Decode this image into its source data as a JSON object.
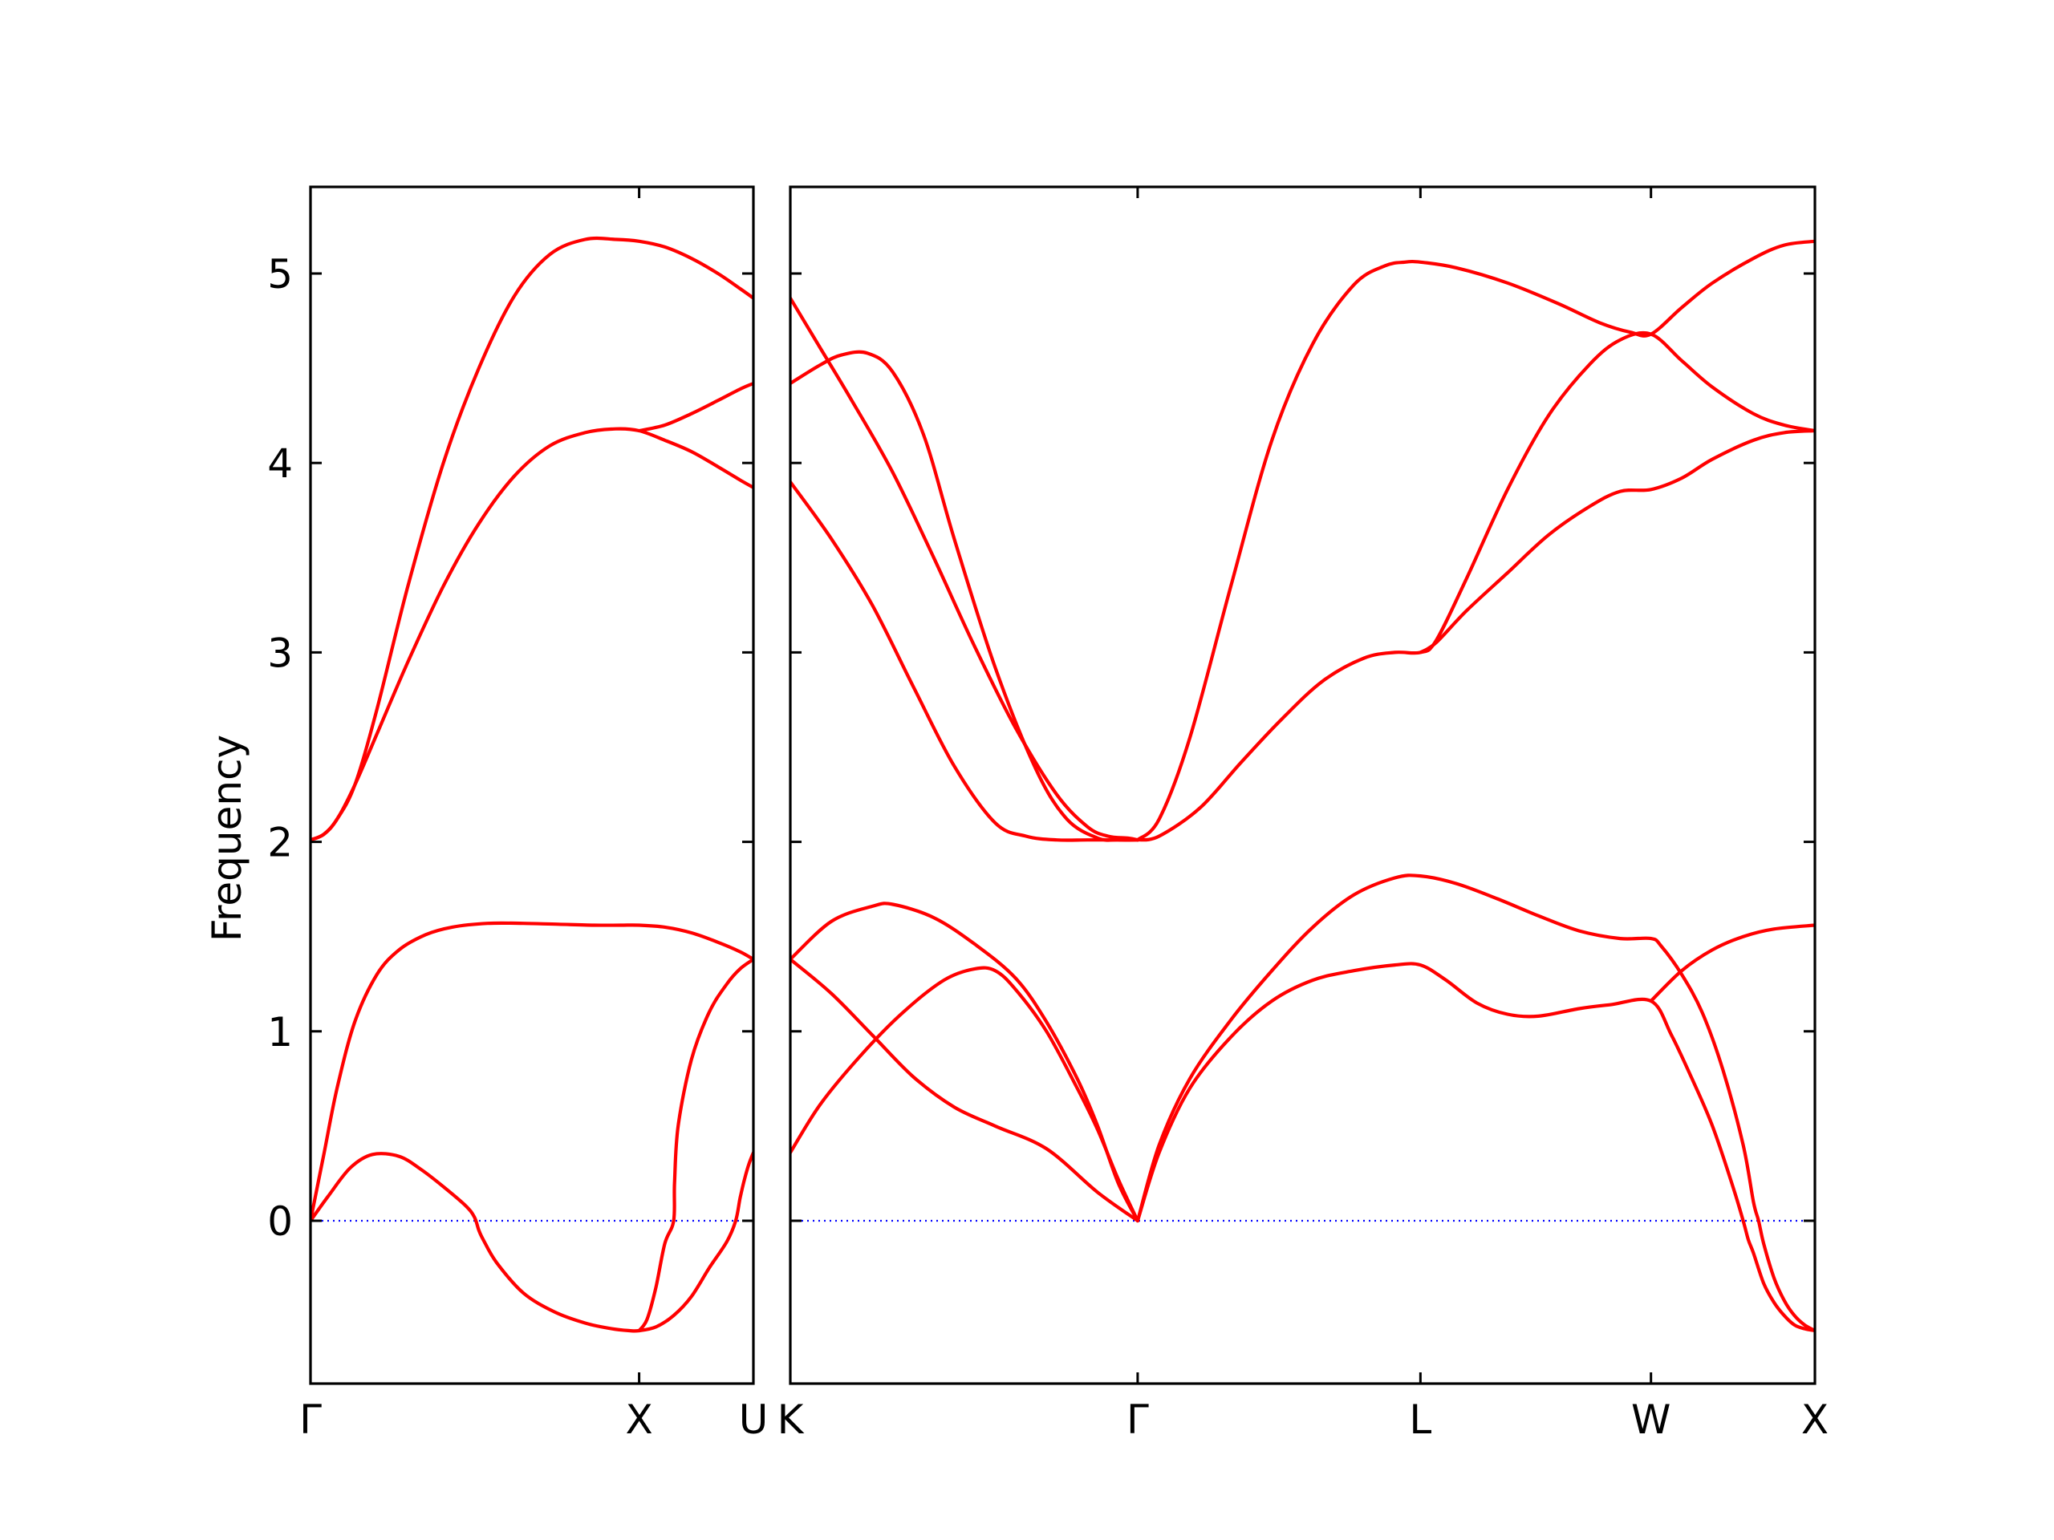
{
  "chart_data": {
    "type": "line",
    "ylabel": "Frequency",
    "ylim": [
      -0.87,
      5.47
    ],
    "yticks": [
      0,
      1,
      2,
      3,
      4,
      5
    ],
    "grid": false,
    "zero_line_color": "#0000ff",
    "band_color": "#ff0000",
    "panels": [
      {
        "xlim": [
          0,
          1
        ],
        "ticks": [
          {
            "x": 0,
            "label": "Γ"
          },
          {
            "x": 0.742,
            "label": "X"
          },
          {
            "x": 1,
            "label": "U"
          }
        ],
        "series": [
          {
            "x": [
              0,
              0.03,
              0.06,
              0.1,
              0.15,
              0.22,
              0.3,
              0.38,
              0.46,
              0.54,
              0.62,
              0.69,
              0.742,
              0.8,
              0.86,
              0.92,
              0.97,
              1.0
            ],
            "values": [
              2.01,
              2.04,
              2.12,
              2.3,
              2.7,
              3.35,
              4.0,
              4.5,
              4.88,
              5.1,
              5.18,
              5.18,
              5.17,
              5.14,
              5.08,
              5.0,
              4.92,
              4.87
            ]
          },
          {
            "x": [
              0,
              0.03,
              0.06,
              0.1,
              0.15,
              0.22,
              0.3,
              0.38,
              0.46,
              0.54,
              0.62,
              0.69,
              0.742,
              0.8,
              0.86,
              0.92,
              0.97,
              1.0
            ],
            "values": [
              2.01,
              2.04,
              2.12,
              2.3,
              2.57,
              2.95,
              3.35,
              3.68,
              3.93,
              4.09,
              4.16,
              4.18,
              4.17,
              4.12,
              4.06,
              3.98,
              3.91,
              3.87
            ]
          },
          {
            "x": [
              0.742,
              0.8,
              0.86,
              0.92,
              0.97,
              1.0
            ],
            "values": [
              4.17,
              4.2,
              4.26,
              4.33,
              4.39,
              4.42
            ]
          },
          {
            "x": [
              0,
              0.03,
              0.06,
              0.1,
              0.15,
              0.2,
              0.26,
              0.32,
              0.4,
              0.48,
              0.56,
              0.64,
              0.7,
              0.742,
              0.8,
              0.86,
              0.92,
              0.97,
              1.0
            ],
            "values": [
              0,
              0.35,
              0.7,
              1.05,
              1.3,
              1.43,
              1.51,
              1.55,
              1.57,
              1.57,
              1.565,
              1.56,
              1.56,
              1.56,
              1.55,
              1.52,
              1.47,
              1.42,
              1.38
            ]
          },
          {
            "x": [
              0,
              0.04,
              0.09,
              0.14,
              0.2,
              0.25,
              0.3,
              0.35,
              0.37,
              0.38,
              0.39,
              0.42,
              0.48,
              0.55,
              0.62,
              0.68,
              0.72,
              0.742,
              0.78,
              0.82,
              0.86,
              0.9,
              0.94,
              0.96,
              0.97,
              0.98,
              0.99,
              1.0
            ],
            "values": [
              0,
              0.13,
              0.28,
              0.35,
              0.34,
              0.27,
              0.18,
              0.08,
              0.02,
              -0.05,
              -0.1,
              -0.22,
              -0.38,
              -0.48,
              -0.54,
              -0.57,
              -0.58,
              -0.58,
              -0.56,
              -0.5,
              -0.4,
              -0.25,
              -0.11,
              0,
              0.12,
              0.22,
              0.3,
              0.36
            ]
          },
          {
            "x": [
              0.742,
              0.76,
              0.78,
              0.8,
              0.82,
              0.822,
              0.83,
              0.86,
              0.9,
              0.94,
              0.97,
              1.0
            ],
            "values": [
              -0.58,
              -0.52,
              -0.35,
              -0.12,
              0,
              0.2,
              0.5,
              0.85,
              1.1,
              1.25,
              1.33,
              1.38
            ]
          }
        ]
      },
      {
        "xlim": [
          0,
          1
        ],
        "ticks": [
          {
            "x": 0,
            "label": "K"
          },
          {
            "x": 0.339,
            "label": "Γ"
          },
          {
            "x": 0.615,
            "label": "L"
          },
          {
            "x": 0.84,
            "label": "W"
          },
          {
            "x": 1,
            "label": "X"
          }
        ],
        "series": [
          {
            "x": [
              0,
              0.03,
              0.06,
              0.1,
              0.14,
              0.18,
              0.22,
              0.26,
              0.29,
              0.31,
              0.33,
              0.339
            ],
            "values": [
              4.87,
              4.6,
              4.33,
              3.95,
              3.5,
              3.03,
              2.6,
              2.25,
              2.08,
              2.03,
              2.02,
              2.01
            ]
          },
          {
            "x": [
              0,
              0.03,
              0.05,
              0.075,
              0.1,
              0.13,
              0.16,
              0.2,
              0.24,
              0.27,
              0.3,
              0.32,
              0.339
            ],
            "values": [
              4.42,
              4.52,
              4.57,
              4.58,
              4.48,
              4.15,
              3.6,
              2.92,
              2.38,
              2.12,
              2.02,
              2.01,
              2.01
            ]
          },
          {
            "x": [
              0,
              0.04,
              0.08,
              0.12,
              0.16,
              0.2,
              0.23,
              0.26,
              0.29,
              0.32,
              0.339
            ],
            "values": [
              3.9,
              3.6,
              3.25,
              2.82,
              2.4,
              2.1,
              2.03,
              2.01,
              2.01,
              2.01,
              2.01
            ]
          },
          {
            "x": [
              0.339,
              0.36,
              0.39,
              0.43,
              0.47,
              0.51,
              0.55,
              0.58,
              0.6,
              0.615,
              0.65,
              0.7,
              0.75,
              0.79,
              0.82,
              0.84,
              0.87,
              0.9,
              0.94,
              0.97,
              1.0
            ],
            "values": [
              2.01,
              2.12,
              2.55,
              3.35,
              4.12,
              4.63,
              4.94,
              5.04,
              5.06,
              5.06,
              5.03,
              4.95,
              4.84,
              4.74,
              4.69,
              4.68,
              4.82,
              4.95,
              5.08,
              5.15,
              5.17
            ]
          },
          {
            "x": [
              0.339,
              0.36,
              0.4,
              0.44,
              0.48,
              0.52,
              0.56,
              0.59,
              0.615,
              0.63,
              0.66,
              0.7,
              0.74,
              0.78,
              0.81,
              0.84,
              0.87,
              0.9,
              0.94,
              0.97,
              1.0
            ],
            "values": [
              2.01,
              2.03,
              2.18,
              2.42,
              2.65,
              2.85,
              2.97,
              3.0,
              3.0,
              3.06,
              3.39,
              3.86,
              4.25,
              4.52,
              4.65,
              4.68,
              4.54,
              4.4,
              4.26,
              4.2,
              4.17
            ]
          },
          {
            "x": [
              0.615,
              0.63,
              0.66,
              0.7,
              0.74,
              0.78,
              0.81,
              0.84,
              0.87,
              0.9,
              0.94,
              0.97,
              1.0
            ],
            "values": [
              3.0,
              3.05,
              3.22,
              3.42,
              3.62,
              3.77,
              3.85,
              3.86,
              3.92,
              4.02,
              4.12,
              4.16,
              4.17
            ]
          },
          {
            "x": [
              0,
              0.04,
              0.08,
              0.1,
              0.14,
              0.18,
              0.22,
              0.25,
              0.28,
              0.3,
              0.32,
              0.339
            ],
            "values": [
              1.38,
              1.58,
              1.66,
              1.67,
              1.6,
              1.46,
              1.28,
              1.05,
              0.75,
              0.5,
              0.2,
              0
            ]
          },
          {
            "x": [
              0,
              0.03,
              0.07,
              0.11,
              0.15,
              0.18,
              0.2,
              0.22,
              0.25,
              0.28,
              0.3,
              0.32,
              0.339
            ],
            "values": [
              0.36,
              0.62,
              0.88,
              1.1,
              1.27,
              1.33,
              1.32,
              1.22,
              1.0,
              0.7,
              0.48,
              0.22,
              0
            ]
          },
          {
            "x": [
              0,
              0.04,
              0.08,
              0.12,
              0.16,
              0.2,
              0.25,
              0.3,
              0.339
            ],
            "values": [
              1.38,
              1.2,
              0.98,
              0.76,
              0.6,
              0.5,
              0.38,
              0.15,
              0
            ]
          },
          {
            "x": [
              0.339,
              0.36,
              0.39,
              0.43,
              0.47,
              0.51,
              0.55,
              0.59,
              0.615,
              0.65,
              0.69,
              0.73,
              0.77,
              0.81,
              0.84,
              0.85,
              0.87,
              0.89,
              0.91,
              0.93,
              0.94,
              0.945,
              0.95,
              0.96,
              0.97,
              0.98,
              0.99,
              1.0
            ],
            "values": [
              0,
              0.4,
              0.75,
              1.06,
              1.32,
              1.55,
              1.72,
              1.81,
              1.82,
              1.78,
              1.7,
              1.61,
              1.53,
              1.49,
              1.49,
              1.45,
              1.3,
              1.1,
              0.8,
              0.4,
              0.1,
              0,
              -0.12,
              -0.3,
              -0.42,
              -0.5,
              -0.55,
              -0.58
            ]
          },
          {
            "x": [
              0.339,
              0.36,
              0.39,
              0.43,
              0.47,
              0.51,
              0.55,
              0.59,
              0.615,
              0.64,
              0.67,
              0.7,
              0.73,
              0.77,
              0.8,
              0.84,
              0.86,
              0.88,
              0.9,
              0.92,
              0.93,
              0.935,
              0.94,
              0.95,
              0.96,
              0.97,
              0.98,
              0.99,
              1.0
            ],
            "values": [
              0,
              0.36,
              0.7,
              0.97,
              1.16,
              1.27,
              1.32,
              1.35,
              1.35,
              1.27,
              1.15,
              1.09,
              1.08,
              1.12,
              1.14,
              1.16,
              0.98,
              0.75,
              0.5,
              0.18,
              0,
              -0.1,
              -0.17,
              -0.33,
              -0.43,
              -0.5,
              -0.55,
              -0.57,
              -0.58
            ]
          },
          {
            "x": [
              0.84,
              0.87,
              0.9,
              0.93,
              0.96,
              1.0
            ],
            "values": [
              1.16,
              1.32,
              1.43,
              1.5,
              1.54,
              1.56
            ]
          }
        ]
      }
    ]
  }
}
